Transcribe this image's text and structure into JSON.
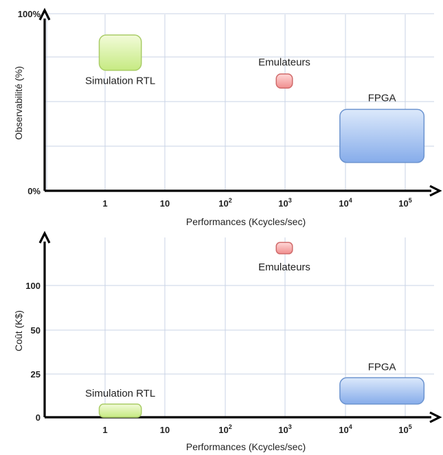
{
  "chart_data": [
    {
      "type": "scatter",
      "xlabel": "Performances (Kcycles/sec)",
      "ylabel": "Observabilité (%)",
      "x_ticks": [
        {
          "base": "1",
          "exp": ""
        },
        {
          "base": "10",
          "exp": ""
        },
        {
          "base": "10",
          "exp": "2"
        },
        {
          "base": "10",
          "exp": "3"
        },
        {
          "base": "10",
          "exp": "4"
        },
        {
          "base": "10",
          "exp": "5"
        }
      ],
      "x_scale": "log",
      "y_ticks": [
        "0%",
        "100%"
      ],
      "ylim": [
        0,
        100
      ],
      "grid": true,
      "regions": [
        {
          "name": "Simulation RTL",
          "x_range": [
            0.8,
            4
          ],
          "y_range": [
            68,
            88
          ],
          "label_position": "below",
          "color": "#c8ec84"
        },
        {
          "name": "Emulateurs",
          "x_range": [
            700,
            1300
          ],
          "y_range": [
            58,
            66
          ],
          "label_position": "above",
          "color": "#f59a9a"
        },
        {
          "name": "FPGA",
          "x_range": [
            8000,
            200000
          ],
          "y_range": [
            16,
            46
          ],
          "label_position": "above",
          "color": "#8fb4ea"
        }
      ]
    },
    {
      "type": "scatter",
      "xlabel": "Performances (Kcycles/sec)",
      "ylabel": "Coût (K$)",
      "x_ticks": [
        {
          "base": "1",
          "exp": ""
        },
        {
          "base": "10",
          "exp": ""
        },
        {
          "base": "10",
          "exp": "2"
        },
        {
          "base": "10",
          "exp": "3"
        },
        {
          "base": "10",
          "exp": "4"
        },
        {
          "base": "10",
          "exp": "5"
        }
      ],
      "x_scale": "log",
      "y_ticks": [
        "0",
        "25",
        "50",
        "100"
      ],
      "grid": true,
      "regions": [
        {
          "name": "Simulation RTL",
          "x_range": [
            0.8,
            4
          ],
          "y_range": [
            0,
            10
          ],
          "label_position": "above",
          "color": "#c8ec84"
        },
        {
          "name": "Emulateurs",
          "x_range": [
            700,
            1300
          ],
          "y_range": [
            128,
            138
          ],
          "label_position": "below",
          "color": "#f59a9a"
        },
        {
          "name": "FPGA",
          "x_range": [
            8000,
            200000
          ],
          "y_range": [
            10,
            30
          ],
          "label_position": "above",
          "color": "#8fb4ea"
        }
      ]
    }
  ]
}
